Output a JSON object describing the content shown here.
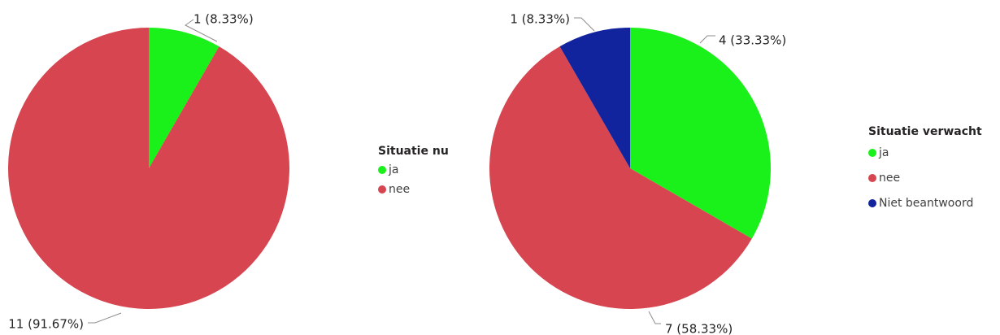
{
  "chart_data": [
    {
      "type": "pie",
      "legend_title": "Situatie nu",
      "legend_position": "right",
      "slices": [
        {
          "name": "ja",
          "value": 1,
          "label": "1 (8.33%)",
          "color": "#1AF01A"
        },
        {
          "name": "nee",
          "value": 11,
          "label": "11 (91.67%)",
          "color": "#D64550"
        }
      ]
    },
    {
      "type": "pie",
      "legend_title": "Situatie verwacht",
      "legend_position": "right",
      "slices": [
        {
          "name": "ja",
          "value": 4,
          "label": "4 (33.33%)",
          "color": "#1AF01A"
        },
        {
          "name": "nee",
          "value": 7,
          "label": "7 (58.33%)",
          "color": "#D64550"
        },
        {
          "name": "Niet beantwoord",
          "value": 1,
          "label": "1 (8.33%)",
          "color": "#12239E"
        }
      ]
    }
  ]
}
